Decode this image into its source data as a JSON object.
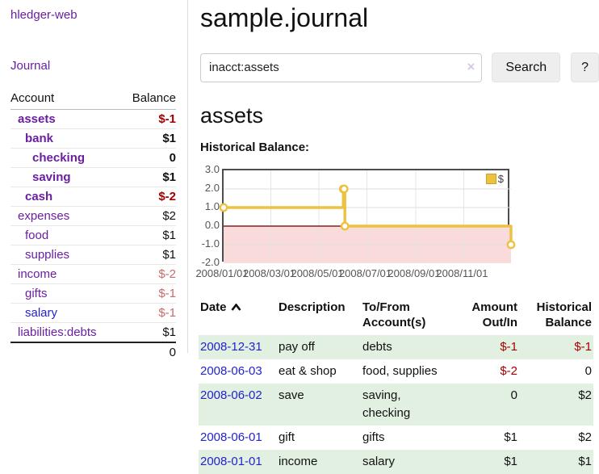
{
  "app": {
    "brand": "hledger-web",
    "nav": {
      "journal": "Journal"
    }
  },
  "colors": {
    "accent_purple": "#6a1fa2",
    "link_blue": "#2323cc",
    "negative_strong": "#a40000",
    "negative_weak": "#c56c6c",
    "row_stripe_green": "#e2f0e2",
    "chart_series_yellow": "#edc240",
    "chart_negative_region": "#f9dbdb",
    "chart_zero_line": "#8b2020"
  },
  "sidebar": {
    "columns": {
      "account": "Account",
      "balance": "Balance"
    },
    "accounts": [
      {
        "name": "assets",
        "depth": 0,
        "balance": "$-1",
        "matched": true,
        "balance_tone": "neg-strong",
        "link_color": "purple"
      },
      {
        "name": "bank",
        "depth": 1,
        "balance": "$1",
        "matched": true,
        "balance_tone": "normal",
        "link_color": "purple"
      },
      {
        "name": "checking",
        "depth": 2,
        "balance": "0",
        "matched": true,
        "balance_tone": "normal",
        "link_color": "purple"
      },
      {
        "name": "saving",
        "depth": 2,
        "balance": "$1",
        "matched": true,
        "balance_tone": "normal",
        "link_color": "purple"
      },
      {
        "name": "cash",
        "depth": 1,
        "balance": "$-2",
        "matched": true,
        "balance_tone": "neg-strong",
        "link_color": "purple"
      },
      {
        "name": "expenses",
        "depth": 0,
        "balance": "$2",
        "matched": false,
        "balance_tone": "normal",
        "link_color": "purple"
      },
      {
        "name": "food",
        "depth": 1,
        "balance": "$1",
        "matched": false,
        "balance_tone": "normal",
        "link_color": "purple"
      },
      {
        "name": "supplies",
        "depth": 1,
        "balance": "$1",
        "matched": false,
        "balance_tone": "normal",
        "link_color": "purple"
      },
      {
        "name": "income",
        "depth": 0,
        "balance": "$-2",
        "matched": false,
        "balance_tone": "neg-weak",
        "link_color": "purple"
      },
      {
        "name": "gifts",
        "depth": 1,
        "balance": "$-1",
        "matched": false,
        "balance_tone": "neg-weak",
        "link_color": "purple"
      },
      {
        "name": "salary",
        "depth": 1,
        "balance": "$-1",
        "matched": false,
        "balance_tone": "neg-weak",
        "link_color": "blue"
      },
      {
        "name": "liabilities:debts",
        "depth": 0,
        "balance": "$1",
        "matched": false,
        "balance_tone": "normal",
        "link_color": "purple"
      }
    ],
    "total": "0"
  },
  "header": {
    "title": "sample.journal"
  },
  "search": {
    "value": "inacct:assets",
    "clear_icon": "×",
    "search_label": "Search",
    "help_label": "?"
  },
  "account_page": {
    "title": "assets",
    "chart_label": "Historical Balance:"
  },
  "chart_data": {
    "type": "line",
    "interpolation": "step-after",
    "title": "Historical Balance",
    "xlim": [
      "2008-01-01",
      "2008-12-31"
    ],
    "ylim": [
      -2.0,
      3.0
    ],
    "y_ticks": [
      "3.0",
      "2.0",
      "1.0",
      "0.0",
      "-1.0",
      "-2.0"
    ],
    "x_ticks": [
      "2008/01/01",
      "2008/03/01",
      "2008/05/01",
      "2008/07/01",
      "2008/09/01",
      "2008/11/01"
    ],
    "grid": true,
    "legend": {
      "position": "top-right",
      "label": "$"
    },
    "series": [
      {
        "name": "$",
        "points": [
          [
            "2008-01-01",
            1.0
          ],
          [
            "2008-06-01",
            2.0
          ],
          [
            "2008-06-02",
            2.0
          ],
          [
            "2008-06-03",
            0.0
          ],
          [
            "2008-12-31",
            -1.0
          ]
        ]
      }
    ]
  },
  "register": {
    "columns": [
      {
        "label": "Date",
        "sorted": "ascending"
      },
      {
        "label": "Description"
      },
      {
        "label": "To/From Account(s)"
      },
      {
        "label": "Amount Out/In",
        "align": "right"
      },
      {
        "label": "Historical Balance",
        "align": "right"
      }
    ],
    "rows": [
      {
        "date": "2008-12-31",
        "description": "pay off",
        "accounts": "debts",
        "amount": "$-1",
        "amount_negative": true,
        "balance": "$-1",
        "balance_negative": true
      },
      {
        "date": "2008-06-03",
        "description": "eat & shop",
        "accounts": "food, supplies",
        "amount": "$-2",
        "amount_negative": true,
        "balance": "0",
        "balance_negative": false
      },
      {
        "date": "2008-06-02",
        "description": "save",
        "accounts": "saving, checking",
        "amount": "0",
        "amount_negative": false,
        "balance": "$2",
        "balance_negative": false
      },
      {
        "date": "2008-06-01",
        "description": "gift",
        "accounts": "gifts",
        "amount": "$1",
        "amount_negative": false,
        "balance": "$2",
        "balance_negative": false
      },
      {
        "date": "2008-01-01",
        "description": "income",
        "accounts": "salary",
        "amount": "$1",
        "amount_negative": false,
        "balance": "$1",
        "balance_negative": false
      }
    ]
  }
}
